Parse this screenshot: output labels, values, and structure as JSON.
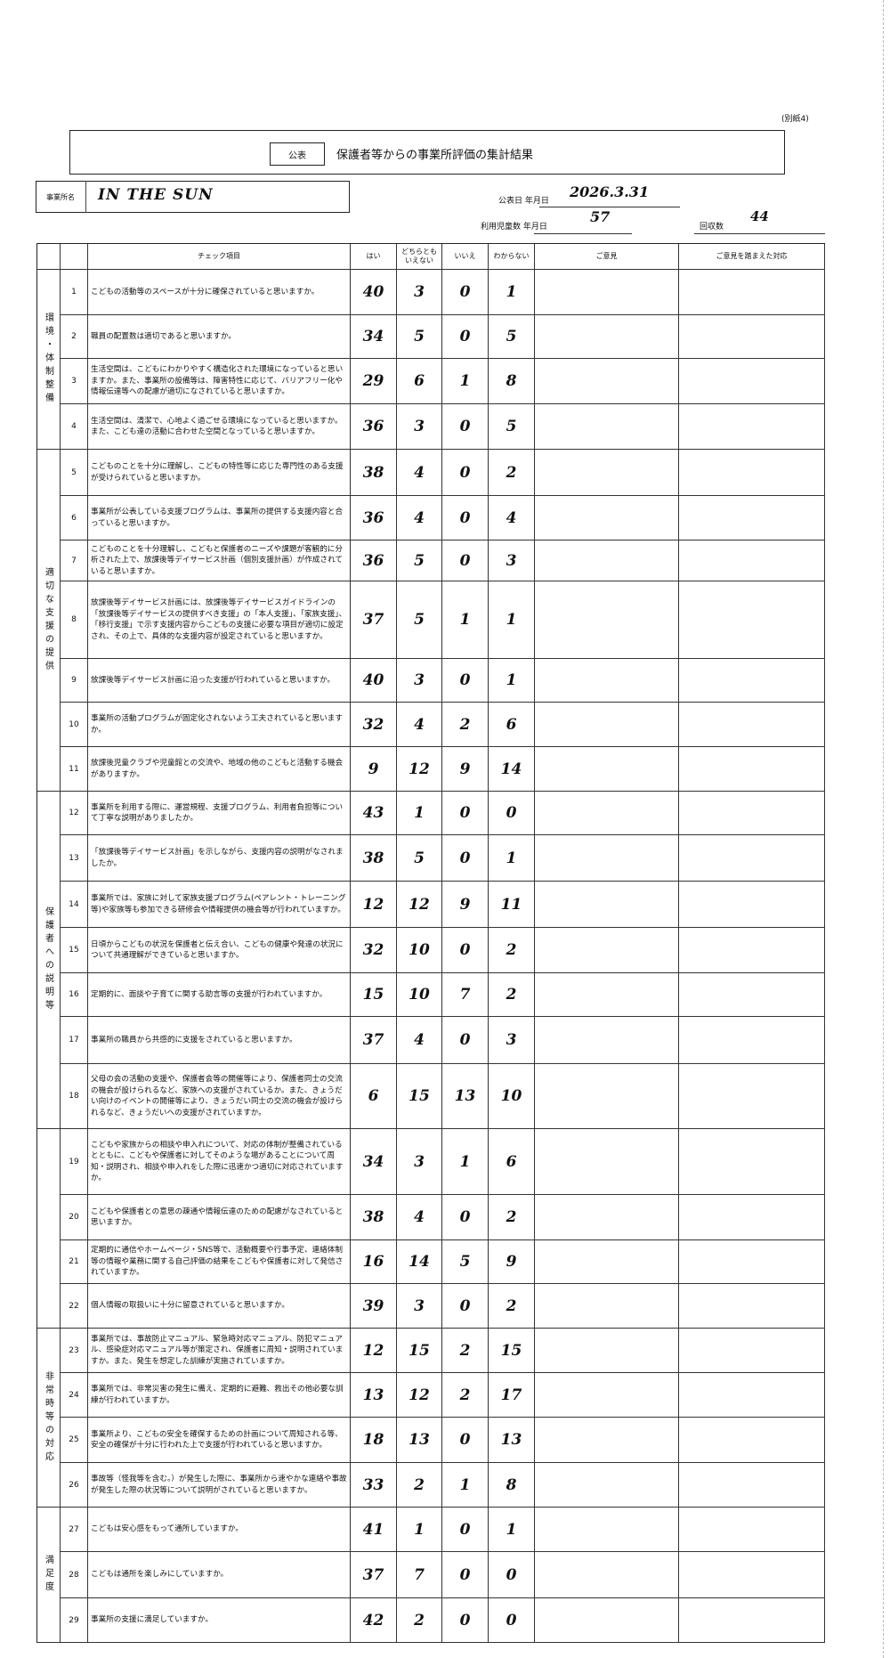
{
  "document": {
    "attachment_label": "(別紙4)",
    "public_tag": "公表",
    "title": "保護者等からの事業所評価の集計結果",
    "office_label": "事業所名",
    "office_name": "IN THE SUN",
    "publication_date_label": "公表日 年月日",
    "publication_date": "2026.3.31",
    "children_count_label": "利用児童数 年月日",
    "children_count": "57",
    "responses_label": "回収数",
    "responses": "44"
  },
  "table": {
    "headers": {
      "check_item": "チェック項目",
      "yes": "はい",
      "neither": "どちらとも いえない",
      "no": "いいえ",
      "unknown": "わからない",
      "opinions": "ご意見",
      "response": "ご意見を踏まえた対応"
    },
    "categories": [
      {
        "label": "環境・体制整備"
      },
      {
        "label": "適切な支援の提供"
      },
      {
        "label": "保護者への説明等"
      },
      {
        "label": ""
      },
      {
        "label": "非常時等の対応"
      },
      {
        "label": "満足度"
      }
    ],
    "rows": [
      {
        "no": "1",
        "question": "こどもの活動等のスペースが十分に確保されていると思いますか。",
        "yes": "40",
        "neither": "3",
        "no_count": "0",
        "unknown": "1"
      },
      {
        "no": "2",
        "question": "職員の配置数は適切であると思いますか。",
        "yes": "34",
        "neither": "5",
        "no_count": "0",
        "unknown": "5"
      },
      {
        "no": "3",
        "question": "生活空間は、こどもにわかりやすく構造化された環境になっていると思いますか。また、事業所の設備等は、障害特性に応じて、バリアフリー化や情報伝達等への配慮が適切になされていると思いますか。",
        "yes": "29",
        "neither": "6",
        "no_count": "1",
        "unknown": "8"
      },
      {
        "no": "4",
        "question": "生活空間は、清潔で、心地よく過ごせる環境になっていると思いますか。また、こども達の活動に合わせた空間となっていると思いますか。",
        "yes": "36",
        "neither": "3",
        "no_count": "0",
        "unknown": "5"
      },
      {
        "no": "5",
        "question": "こどものことを十分に理解し、こどもの特性等に応じた専門性のある支援が受けられていると思いますか。",
        "yes": "38",
        "neither": "4",
        "no_count": "0",
        "unknown": "2"
      },
      {
        "no": "6",
        "question": "事業所が公表している支援プログラムは、事業所の提供する支援内容と合っていると思いますか。",
        "yes": "36",
        "neither": "4",
        "no_count": "0",
        "unknown": "4"
      },
      {
        "no": "7",
        "question": "こどものことを十分理解し、こどもと保護者のニーズや課題が客観的に分析された上で、放課後等デイサービス計画（個別支援計画）が作成されていると思いますか。",
        "yes": "36",
        "neither": "5",
        "no_count": "0",
        "unknown": "3"
      },
      {
        "no": "8",
        "question": "放課後等デイサービス計画には、放課後等デイサービスガイドラインの「放課後等デイサービスの提供すべき支援」の「本人支援」、「家族支援」、「移行支援」で示す支援内容からこどもの支援に必要な項目が適切に設定され、その上で、具体的な支援内容が設定されていると思いますか。",
        "yes": "37",
        "neither": "5",
        "no_count": "1",
        "unknown": "1"
      },
      {
        "no": "9",
        "question": "放課後等デイサービス計画に沿った支援が行われていると思いますか。",
        "yes": "40",
        "neither": "3",
        "no_count": "0",
        "unknown": "1"
      },
      {
        "no": "10",
        "question": "事業所の活動プログラムが固定化されないよう工夫されていると思いますか。",
        "yes": "32",
        "neither": "4",
        "no_count": "2",
        "unknown": "6"
      },
      {
        "no": "11",
        "question": "放課後児童クラブや児童館との交流や、地域の他のこどもと活動する機会がありますか。",
        "yes": "9",
        "neither": "12",
        "no_count": "9",
        "unknown": "14"
      },
      {
        "no": "12",
        "question": "事業所を利用する際に、運営規程、支援プログラム、利用者負担等について丁寧な説明がありましたか。",
        "yes": "43",
        "neither": "1",
        "no_count": "0",
        "unknown": "0"
      },
      {
        "no": "13",
        "question": "「放課後等デイサービス計画」を示しながら、支援内容の説明がなされましたか。",
        "yes": "38",
        "neither": "5",
        "no_count": "0",
        "unknown": "1"
      },
      {
        "no": "14",
        "question": "事業所では、家族に対して家族支援プログラム(ペアレント・トレーニング等)や家族等も参加できる研修会や情報提供の機会等が行われていますか。",
        "yes": "12",
        "neither": "12",
        "no_count": "9",
        "unknown": "11"
      },
      {
        "no": "15",
        "question": "日頃からこどもの状況を保護者と伝え合い、こどもの健康や発達の状況について共通理解ができていると思いますか。",
        "yes": "32",
        "neither": "10",
        "no_count": "0",
        "unknown": "2"
      },
      {
        "no": "16",
        "question": "定期的に、面談や子育てに関する助言等の支援が行われていますか。",
        "yes": "15",
        "neither": "10",
        "no_count": "7",
        "unknown": "2"
      },
      {
        "no": "17",
        "question": "事業所の職員から共感的に支援をされていると思いますか。",
        "yes": "37",
        "neither": "4",
        "no_count": "0",
        "unknown": "3"
      },
      {
        "no": "18",
        "question": "父母の会の活動の支援や、保護者会等の開催等により、保護者同士の交流の機会が設けられるなど、家族への支援がされているか。また、きょうだい向けのイベントの開催等により、きょうだい同士の交流の機会が設けられるなど、きょうだいへの支援がされていますか。",
        "yes": "6",
        "neither": "15",
        "no_count": "13",
        "unknown": "10"
      },
      {
        "no": "19",
        "question": "こどもや家族からの相談や申入れについて、対応の体制が整備されているとともに、こどもや保護者に対してそのような場があることについて周知・説明され、相談や申入れをした際に迅速かつ適切に対応されていますか。",
        "yes": "34",
        "neither": "3",
        "no_count": "1",
        "unknown": "6"
      },
      {
        "no": "20",
        "question": "こどもや保護者との意思の疎通や情報伝達のための配慮がなされていると思いますか。",
        "yes": "38",
        "neither": "4",
        "no_count": "0",
        "unknown": "2"
      },
      {
        "no": "21",
        "question": "定期的に通信やホームページ・SNS等で、活動概要や行事予定、連絡体制等の情報や業務に関する自己評価の結果をこどもや保護者に対して発信されていますか。",
        "yes": "16",
        "neither": "14",
        "no_count": "5",
        "unknown": "9"
      },
      {
        "no": "22",
        "question": "個人情報の取扱いに十分に留意されていると思いますか。",
        "yes": "39",
        "neither": "3",
        "no_count": "0",
        "unknown": "2"
      },
      {
        "no": "23",
        "question": "事業所では、事故防止マニュアル、緊急時対応マニュアル、防犯マニュアル、感染症対応マニュアル等が策定され、保護者に周知・説明されていますか。また、発生を想定した訓練が実施されていますか。",
        "yes": "12",
        "neither": "15",
        "no_count": "2",
        "unknown": "15"
      },
      {
        "no": "24",
        "question": "事業所では、非常災害の発生に備え、定期的に避難、救出その他必要な訓練が行われていますか。",
        "yes": "13",
        "neither": "12",
        "no_count": "2",
        "unknown": "17"
      },
      {
        "no": "25",
        "question": "事業所より、こどもの安全を確保するための計画について周知される等、安全の確保が十分に行われた上で支援が行われていると思いますか。",
        "yes": "18",
        "neither": "13",
        "no_count": "0",
        "unknown": "13"
      },
      {
        "no": "26",
        "question": "事故等（怪我等を含む。）が発生した際に、事業所から速やかな連絡や事故が発生した際の状況等について説明がされていると思いますか。",
        "yes": "33",
        "neither": "2",
        "no_count": "1",
        "unknown": "8"
      },
      {
        "no": "27",
        "question": "こどもは安心感をもって通所していますか。",
        "yes": "41",
        "neither": "1",
        "no_count": "0",
        "unknown": "1"
      },
      {
        "no": "28",
        "question": "こどもは通所を楽しみにしていますか。",
        "yes": "37",
        "neither": "7",
        "no_count": "0",
        "unknown": "0"
      },
      {
        "no": "29",
        "question": "事業所の支援に満足していますか。",
        "yes": "42",
        "neither": "2",
        "no_count": "0",
        "unknown": "0"
      }
    ]
  }
}
